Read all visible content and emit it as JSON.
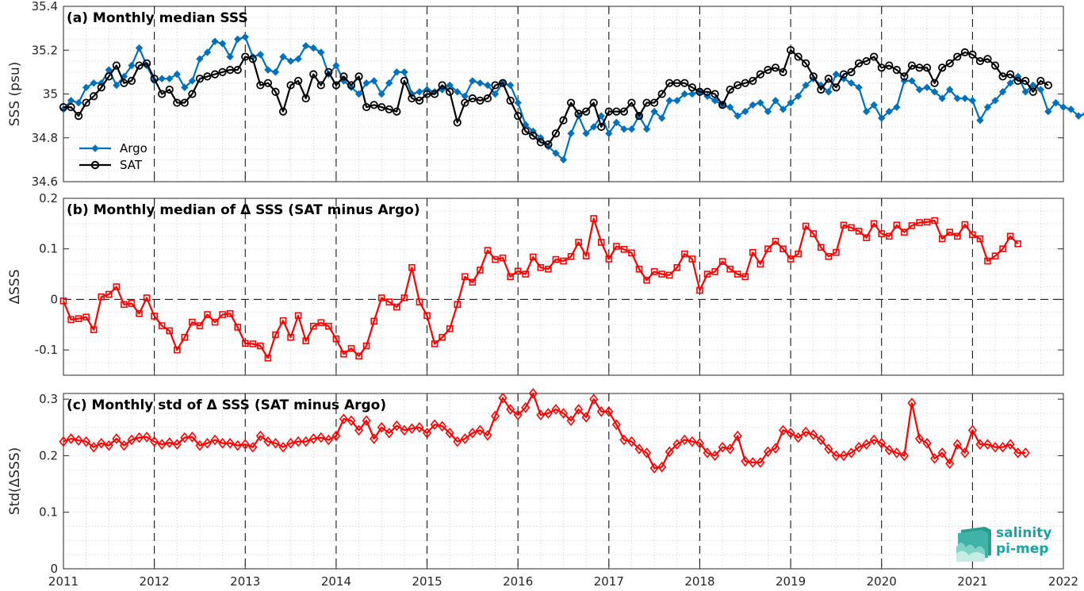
{
  "chart_data": [
    {
      "type": "line",
      "title": "(a) Monthly median SSS",
      "ylabel": "SSS (psu)",
      "xlim": [
        2011,
        2022
      ],
      "ylim": [
        34.6,
        35.4
      ],
      "yticks": [
        34.6,
        34.8,
        35,
        35.2,
        35.4
      ],
      "ytick_labels": [
        "34.6",
        "34.8",
        "35",
        "35.2",
        "35.4"
      ],
      "legend": "left-bottom",
      "grid": true,
      "series": [
        {
          "name": "Argo",
          "color": "#0072BD",
          "marker": "diamond",
          "values": [
            34.93,
            34.97,
            34.96,
            35.03,
            35.05,
            35.05,
            35.11,
            35.04,
            35.08,
            35.13,
            35.21,
            35.13,
            35.06,
            35.07,
            35.07,
            35.09,
            35.03,
            35.06,
            35.16,
            35.19,
            35.24,
            35.23,
            35.17,
            35.25,
            35.26,
            35.17,
            35.18,
            35.11,
            35.1,
            35.17,
            35.15,
            35.16,
            35.22,
            35.21,
            35.19,
            35.09,
            35.13,
            35.06,
            35.03,
            35.0,
            35.05,
            35.06,
            35.0,
            35.05,
            35.1,
            35.1,
            35.0,
            35.01,
            35.02,
            35.01,
            35.02,
            35.04,
            35.01,
            34.99,
            35.06,
            35.05,
            35.04,
            35.0,
            35.05,
            35.04,
            34.96,
            34.86,
            34.83,
            34.8,
            34.76,
            34.73,
            34.7,
            34.82,
            34.9,
            34.82,
            34.85,
            34.9,
            34.82,
            34.87,
            34.84,
            34.84,
            34.9,
            34.84,
            34.92,
            34.89,
            34.97,
            34.97,
            35.0,
            35.0,
            35.01,
            34.99,
            34.97,
            34.95,
            34.94,
            34.9,
            34.92,
            34.95,
            34.96,
            34.92,
            34.97,
            34.93,
            34.96,
            34.99,
            35.04,
            35.07,
            35.04,
            35.01,
            35.09,
            35.07,
            35.05,
            35.03,
            34.92,
            34.95,
            34.89,
            34.92,
            34.94,
            35.06,
            35.06,
            35.02,
            35.03,
            35.01,
            34.98,
            35.02,
            34.98,
            34.98,
            34.97,
            34.88,
            34.94,
            34.97,
            35.01,
            35.05,
            35.08,
            35.01,
            35.04,
            35.02,
            34.92,
            34.96,
            34.94,
            34.93,
            34.9,
            34.91,
            34.89
          ]
        },
        {
          "name": "SAT",
          "color": "#000000",
          "marker": "circle",
          "values": [
            34.94,
            34.94,
            34.9,
            34.96,
            34.99,
            35.03,
            35.08,
            35.13,
            35.05,
            35.06,
            35.13,
            35.14,
            35.07,
            35.0,
            35.02,
            34.96,
            34.96,
            35.0,
            35.07,
            35.08,
            35.09,
            35.1,
            35.11,
            35.11,
            35.17,
            35.16,
            35.04,
            35.05,
            35.01,
            34.92,
            35.04,
            35.06,
            34.98,
            35.09,
            35.04,
            35.1,
            35.04,
            35.08,
            35.04,
            35.08,
            34.94,
            34.95,
            34.94,
            34.93,
            34.92,
            35.06,
            34.98,
            34.97,
            35.0,
            35.0,
            35.04,
            35.01,
            34.87,
            34.96,
            34.98,
            34.97,
            34.98,
            35.04,
            35.05,
            34.97,
            34.9,
            34.83,
            34.81,
            34.78,
            34.77,
            34.82,
            34.88,
            34.96,
            34.91,
            34.92,
            34.96,
            34.85,
            34.92,
            34.92,
            34.92,
            34.96,
            34.9,
            34.96,
            34.96,
            35.0,
            35.05,
            35.05,
            35.05,
            35.03,
            35.01,
            35.01,
            35.0,
            34.95,
            35.02,
            35.04,
            35.05,
            35.06,
            35.09,
            35.11,
            35.12,
            35.1,
            35.2,
            35.17,
            35.14,
            35.08,
            35.02,
            35.07,
            35.03,
            35.09,
            35.1,
            35.14,
            35.15,
            35.17,
            35.12,
            35.13,
            35.11,
            35.08,
            35.13,
            35.12,
            35.12,
            35.05,
            35.12,
            35.14,
            35.17,
            35.19,
            35.18,
            35.15,
            35.16,
            35.13,
            35.08,
            35.09,
            35.06,
            35.06,
            35.01,
            35.06,
            35.04
          ]
        }
      ]
    },
    {
      "type": "line",
      "title": "(b) Monthly median of Δ SSS (SAT minus Argo)",
      "ylabel": "ΔSSS",
      "xlim": [
        2011,
        2022
      ],
      "ylim": [
        -0.15,
        0.2
      ],
      "yticks": [
        -0.1,
        0,
        0.1,
        0.2
      ],
      "ytick_labels": [
        "-0.1",
        "0",
        "0.1",
        "0.2"
      ],
      "grid": true,
      "series": [
        {
          "color": "#FF0000",
          "marker": "square",
          "values": [
            -0.003,
            -0.04,
            -0.038,
            -0.035,
            -0.06,
            0.005,
            0.01,
            0.025,
            -0.01,
            -0.008,
            -0.028,
            0.003,
            -0.033,
            -0.052,
            -0.062,
            -0.1,
            -0.075,
            -0.045,
            -0.052,
            -0.03,
            -0.045,
            -0.03,
            -0.028,
            -0.055,
            -0.087,
            -0.088,
            -0.092,
            -0.116,
            -0.07,
            -0.042,
            -0.075,
            -0.032,
            -0.082,
            -0.053,
            -0.046,
            -0.053,
            -0.078,
            -0.108,
            -0.097,
            -0.112,
            -0.092,
            -0.043,
            0.003,
            -0.005,
            -0.015,
            0.003,
            0.063,
            -0.005,
            -0.032,
            -0.088,
            -0.075,
            -0.058,
            -0.01,
            0.045,
            0.034,
            0.058,
            0.097,
            0.079,
            0.082,
            0.045,
            0.056,
            0.05,
            0.084,
            0.063,
            0.06,
            0.079,
            0.076,
            0.085,
            0.113,
            0.086,
            0.16,
            0.113,
            0.08,
            0.105,
            0.099,
            0.092,
            0.06,
            0.038,
            0.055,
            0.05,
            0.048,
            0.063,
            0.09,
            0.08,
            0.018,
            0.05,
            0.055,
            0.075,
            0.06,
            0.05,
            0.045,
            0.093,
            0.07,
            0.1,
            0.115,
            0.1,
            0.08,
            0.09,
            0.145,
            0.13,
            0.103,
            0.085,
            0.093,
            0.147,
            0.142,
            0.135,
            0.122,
            0.15,
            0.13,
            0.125,
            0.147,
            0.133,
            0.146,
            0.152,
            0.153,
            0.156,
            0.12,
            0.133,
            0.125,
            0.148,
            0.128,
            0.12,
            0.076,
            0.086,
            0.1,
            0.125,
            0.11
          ]
        }
      ]
    },
    {
      "type": "line",
      "title": "(c) Monthly std of Δ SSS (SAT minus Argo)",
      "ylabel": "Std(ΔSSS)",
      "xlim": [
        2011,
        2022
      ],
      "ylim": [
        0,
        0.31
      ],
      "yticks": [
        0,
        0.1,
        0.2,
        0.3
      ],
      "ytick_labels": [
        "0",
        "0.1",
        "0.2",
        "0.3"
      ],
      "xticks": [
        2011,
        2012,
        2013,
        2014,
        2015,
        2016,
        2017,
        2018,
        2019,
        2020,
        2021,
        2022
      ],
      "xtick_labels": [
        "2011",
        "2012",
        "2013",
        "2014",
        "2015",
        "2016",
        "2017",
        "2018",
        "2019",
        "2020",
        "2021",
        "2022"
      ],
      "grid": true,
      "series": [
        {
          "color": "#FF0000",
          "marker": "diamond",
          "values": [
            0.225,
            0.23,
            0.227,
            0.225,
            0.215,
            0.222,
            0.218,
            0.23,
            0.218,
            0.228,
            0.232,
            0.233,
            0.225,
            0.22,
            0.223,
            0.22,
            0.232,
            0.233,
            0.218,
            0.222,
            0.228,
            0.222,
            0.222,
            0.218,
            0.22,
            0.215,
            0.235,
            0.225,
            0.222,
            0.215,
            0.222,
            0.225,
            0.225,
            0.23,
            0.232,
            0.228,
            0.235,
            0.265,
            0.262,
            0.245,
            0.262,
            0.23,
            0.25,
            0.24,
            0.253,
            0.245,
            0.248,
            0.25,
            0.24,
            0.255,
            0.252,
            0.24,
            0.225,
            0.23,
            0.24,
            0.245,
            0.236,
            0.27,
            0.302,
            0.282,
            0.272,
            0.285,
            0.31,
            0.272,
            0.275,
            0.282,
            0.275,
            0.262,
            0.282,
            0.268,
            0.3,
            0.278,
            0.278,
            0.255,
            0.228,
            0.225,
            0.212,
            0.205,
            0.178,
            0.18,
            0.207,
            0.22,
            0.228,
            0.225,
            0.222,
            0.205,
            0.2,
            0.215,
            0.212,
            0.235,
            0.19,
            0.188,
            0.188,
            0.207,
            0.213,
            0.245,
            0.24,
            0.232,
            0.242,
            0.237,
            0.228,
            0.212,
            0.2,
            0.2,
            0.205,
            0.215,
            0.22,
            0.228,
            0.222,
            0.21,
            0.205,
            0.2,
            0.293,
            0.23,
            0.222,
            0.195,
            0.205,
            0.186,
            0.22,
            0.205,
            0.245,
            0.22,
            0.22,
            0.215,
            0.215,
            0.22,
            0.205,
            0.205
          ]
        }
      ]
    }
  ],
  "logo": {
    "line1": "salinity",
    "line2": "pi-mep",
    "color": "#1aa3a0"
  }
}
